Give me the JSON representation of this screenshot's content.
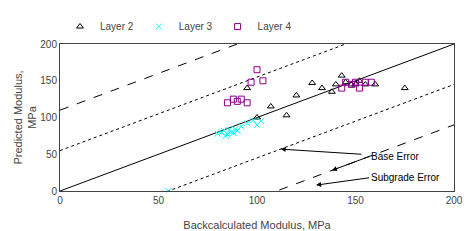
{
  "chart_data": {
    "type": "scatter",
    "xlabel": "Backcalculated Modulus, MPa",
    "ylabel": "Predicted Modulus,\nMPa",
    "xlim": [
      0,
      200
    ],
    "ylim": [
      0,
      200
    ],
    "xticks": [
      0,
      50,
      100,
      150,
      200
    ],
    "yticks": [
      0,
      50,
      100,
      150,
      200
    ],
    "grid": false,
    "legend": "top",
    "series": [
      {
        "name": "Layer 2",
        "color": "black",
        "marker": "triangle-open",
        "x": [
          95,
          100,
          107,
          115,
          120,
          128,
          133,
          138,
          140,
          143,
          145,
          148,
          150,
          152,
          155,
          160,
          175
        ],
        "values": [
          140,
          100,
          115,
          103,
          130,
          147,
          140,
          135,
          145,
          157,
          148,
          145,
          145,
          150,
          145,
          145,
          140
        ]
      },
      {
        "name": "Layer 3",
        "color": "cyan",
        "marker": "x",
        "x": [
          55,
          80,
          82,
          83,
          84,
          85,
          86,
          87,
          88,
          89,
          90,
          92,
          95,
          98,
          100,
          102
        ],
        "values": [
          0,
          78,
          80,
          82,
          75,
          77,
          83,
          80,
          79,
          84,
          82,
          88,
          92,
          96,
          90,
          95
        ]
      },
      {
        "name": "Layer 4",
        "color": "#880088",
        "marker": "square-open",
        "x": [
          85,
          88,
          90,
          92,
          95,
          97,
          100,
          103,
          143,
          145,
          148,
          150,
          152,
          155,
          158
        ],
        "values": [
          120,
          125,
          122,
          125,
          120,
          148,
          165,
          150,
          140,
          148,
          145,
          148,
          140,
          148,
          148
        ]
      }
    ],
    "reference_lines": [
      {
        "intercept": 0,
        "line_style": "solid",
        "color": "black"
      },
      {
        "intercept": 55,
        "line_style": "dotted",
        "color": "black"
      },
      {
        "intercept": -55,
        "line_style": "dotted",
        "color": "black"
      },
      {
        "intercept": 110,
        "line_style": "dashed",
        "color": "black"
      },
      {
        "intercept": -110,
        "line_style": "dashed",
        "color": "black"
      }
    ],
    "annotations": [
      "Base Error",
      "Subgrade Error"
    ]
  }
}
